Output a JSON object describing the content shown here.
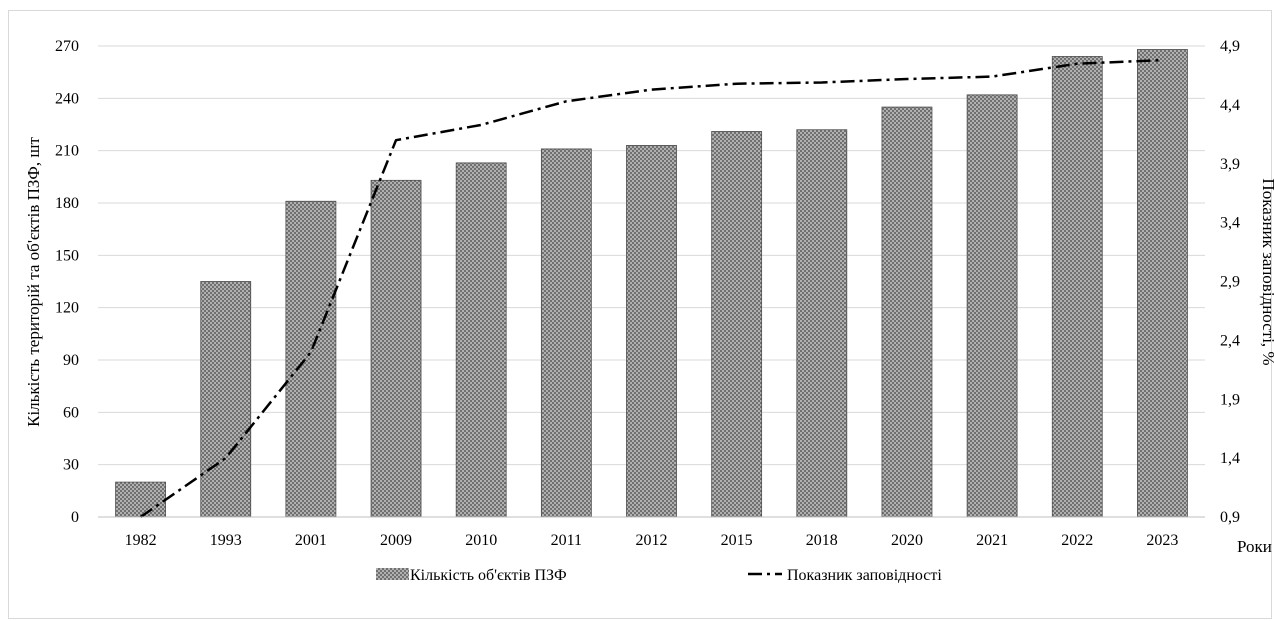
{
  "chart_data": {
    "type": "bar",
    "categories": [
      "1982",
      "1993",
      "2001",
      "2009",
      "2010",
      "2011",
      "2012",
      "2015",
      "2018",
      "2020",
      "2021",
      "2022",
      "2023"
    ],
    "series": [
      {
        "name": "Кількість об'єктів ПЗФ",
        "type": "bar",
        "axis": "left",
        "values": [
          20,
          135,
          181,
          193,
          203,
          211,
          213,
          221,
          222,
          235,
          242,
          264,
          268
        ]
      },
      {
        "name": "Показник заповідності",
        "type": "line",
        "axis": "right",
        "style": "dash-dot",
        "values": [
          0.9,
          1.4,
          2.3,
          4.1,
          4.23,
          4.43,
          4.53,
          4.58,
          4.59,
          4.62,
          4.64,
          4.75,
          4.78
        ]
      }
    ],
    "xlabel": "Роки",
    "ylabel": "Кількість територій та об'єктів ПЗФ, шт",
    "y2label": "Показник заповідності, %",
    "ylim": [
      0,
      270
    ],
    "yticks": [
      "0",
      "30",
      "60",
      "90",
      "120",
      "150",
      "180",
      "210",
      "240",
      "270"
    ],
    "y2lim": [
      0.9,
      4.9
    ],
    "y2ticks": [
      "0,9",
      "1,4",
      "1,9",
      "2,4",
      "2,9",
      "3,4",
      "3,9",
      "4,4",
      "4,9"
    ],
    "grid": true,
    "legend_position": "bottom",
    "colors": {
      "bar_fill": "#707070",
      "bar_dots": "#e6e6e6",
      "line": "#000000",
      "grid": "#d9d9d9"
    }
  }
}
